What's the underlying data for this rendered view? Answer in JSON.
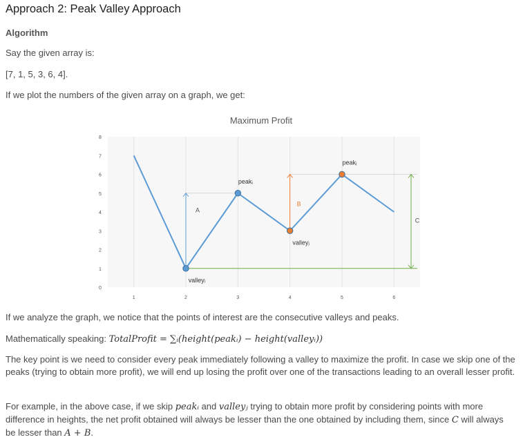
{
  "heading": "Approach 2: Peak Valley Approach",
  "subheading": "Algorithm",
  "paragraphs": {
    "p1": "Say the given array is:",
    "p2": "[7, 1, 5, 3, 6, 4].",
    "p3": "If we plot the numbers of the given array on a graph, we get:",
    "p4": "If we analyze the graph, we notice that the points of interest are the consecutive valleys and peaks.",
    "p5_prefix": "Mathematically speaking: ",
    "p5_formula": "TotalProfit = ∑ᵢ(height(peakᵢ) − height(valleyᵢ))",
    "p6": "The key point is we need to consider every peak immediately following a valley to maximize the profit. In case we skip one of the peaks (trying to obtain more profit), we will end up losing the profit over one of the transactions leading to an overall lesser profit.",
    "p7_a": "For example, in the above case, if we skip ",
    "p7_peak": "peakᵢ",
    "p7_b": " and ",
    "p7_valley": "valleyⱼ",
    "p7_c": " trying to obtain more profit by considering points with more difference in heights, the net profit obtained will always be lesser than the one obtained by including them, since ",
    "p7_C": "C",
    "p7_d": " will always be lesser than ",
    "p7_AB": "A + B",
    "p7_e": "."
  },
  "chart_data": {
    "type": "line",
    "title": "Maximum Profit",
    "x": [
      1,
      2,
      3,
      4,
      5,
      6
    ],
    "y": [
      7,
      1,
      5,
      3,
      6,
      4
    ],
    "xticks": [
      "1",
      "2",
      "3",
      "4",
      "5",
      "6"
    ],
    "yticks": [
      "0",
      "1",
      "2",
      "3",
      "4",
      "5",
      "6",
      "7",
      "8"
    ],
    "xlim": [
      0.5,
      6.5
    ],
    "ylim": [
      0,
      8
    ],
    "line_color": "#5b9bd5",
    "point_labels": [
      {
        "x": 2,
        "y": 1,
        "text": "valleyᵢ",
        "color": "#5b9bd5"
      },
      {
        "x": 3,
        "y": 5,
        "text": "peakᵢ",
        "color": "#5b9bd5"
      },
      {
        "x": 4,
        "y": 3,
        "text": "valleyⱼ",
        "color": "#ed7d31"
      },
      {
        "x": 5,
        "y": 6,
        "text": "peakⱼ",
        "color": "#ed7d31"
      }
    ],
    "annotations": [
      {
        "label": "A",
        "color": "#5b9bd5"
      },
      {
        "label": "B",
        "color": "#ed7d31"
      },
      {
        "label": "C",
        "color": "#70ad47"
      }
    ]
  }
}
